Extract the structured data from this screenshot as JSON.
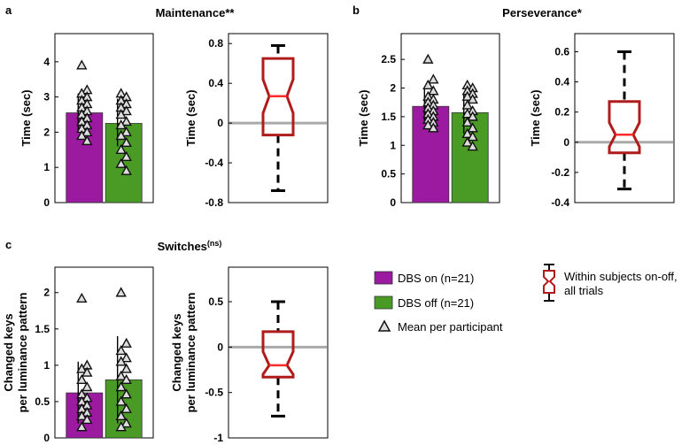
{
  "chart_data": [
    {
      "panel": "a",
      "title": "Maintenance",
      "title_suffix": "**",
      "bar_chart": {
        "type": "bar",
        "ylabel": "Time (sec)",
        "ylim": [
          0,
          4.8
        ],
        "yticks": [
          0,
          1,
          2,
          3,
          4
        ],
        "ytick_labels": [
          "0",
          "1",
          "2",
          "3",
          "4"
        ],
        "series": [
          {
            "name": "DBS on (n=21)",
            "color": "#9b1aa0",
            "value": 2.55,
            "err_low": 2.0,
            "err_high": 3.1,
            "points": [
              3.9,
              3.2,
              3.1,
              3.0,
              2.9,
              2.8,
              2.7,
              2.6,
              2.5,
              2.4,
              2.3,
              2.2,
              2.1,
              2.0,
              1.9,
              1.75
            ]
          },
          {
            "name": "DBS off (n=21)",
            "color": "#4a9a26",
            "value": 2.25,
            "err_low": 1.6,
            "err_high": 2.95,
            "points": [
              3.1,
              3.0,
              2.9,
              2.8,
              2.7,
              2.6,
              2.5,
              2.3,
              2.2,
              2.0,
              1.9,
              1.7,
              1.5,
              1.3,
              1.1,
              0.9
            ]
          }
        ]
      },
      "box_chart": {
        "type": "box",
        "ylabel": "Time (sec)",
        "ylim": [
          -0.8,
          0.9
        ],
        "yticks": [
          -0.8,
          -0.4,
          0,
          0.4,
          0.8
        ],
        "ytick_labels": [
          "-0.8",
          "-0.4",
          "0",
          "0.4",
          "0.8"
        ],
        "whisker_low": -0.68,
        "q1": -0.12,
        "median": 0.27,
        "q3": 0.65,
        "whisker_high": 0.78,
        "notch_low": 0.1,
        "notch_high": 0.44
      }
    },
    {
      "panel": "b",
      "title": "Perseverance",
      "title_suffix": "*",
      "bar_chart": {
        "type": "bar",
        "ylabel": "Time (sec)",
        "ylim": [
          0,
          2.95
        ],
        "yticks": [
          0,
          0.5,
          1,
          1.5,
          2,
          2.5
        ],
        "ytick_labels": [
          "0",
          "0.5",
          "1",
          "1.5",
          "2",
          "2.5"
        ],
        "series": [
          {
            "name": "DBS on (n=21)",
            "color": "#9b1aa0",
            "value": 1.68,
            "err_low": 1.4,
            "err_high": 2.0,
            "points": [
              2.5,
              2.15,
              2.05,
              1.95,
              1.85,
              1.8,
              1.75,
              1.7,
              1.65,
              1.6,
              1.55,
              1.5,
              1.45,
              1.4,
              1.35,
              1.3
            ]
          },
          {
            "name": "DBS off (n=21)",
            "color": "#4a9a26",
            "value": 1.57,
            "err_low": 1.2,
            "err_high": 1.9,
            "points": [
              2.05,
              2.0,
              1.95,
              1.9,
              1.85,
              1.8,
              1.7,
              1.6,
              1.55,
              1.5,
              1.4,
              1.3,
              1.2,
              1.15,
              1.05,
              0.98
            ]
          }
        ]
      },
      "box_chart": {
        "type": "box",
        "ylabel": "Time (sec)",
        "ylim": [
          -0.4,
          0.72
        ],
        "yticks": [
          -0.4,
          -0.2,
          0,
          0.2,
          0.4,
          0.6
        ],
        "ytick_labels": [
          "-0.4",
          "-0.2",
          "0",
          "0.2",
          "0.4",
          "0.6"
        ],
        "whisker_low": -0.31,
        "q1": -0.07,
        "median": 0.05,
        "q3": 0.27,
        "whisker_high": 0.6,
        "notch_low": -0.03,
        "notch_high": 0.13
      }
    },
    {
      "panel": "c",
      "title": "Switches",
      "title_suffix": "(ns)",
      "bar_chart": {
        "type": "bar",
        "ylabel": "Changed keys per luminance pattern",
        "ylabel_lines": [
          "Changed keys",
          "per luminance pattern"
        ],
        "ylim": [
          0,
          2.35
        ],
        "yticks": [
          0,
          0.5,
          1,
          1.5,
          2
        ],
        "ytick_labels": [
          "0",
          "0.5",
          "1",
          "1.5",
          "2"
        ],
        "series": [
          {
            "name": "DBS on (n=21)",
            "color": "#9b1aa0",
            "value": 0.62,
            "err_low": 0.2,
            "err_high": 1.05,
            "points": [
              1.92,
              1.0,
              0.95,
              0.9,
              0.8,
              0.7,
              0.6,
              0.55,
              0.5,
              0.45,
              0.4,
              0.35,
              0.3,
              0.25,
              0.15
            ]
          },
          {
            "name": "DBS off (n=21)",
            "color": "#4a9a26",
            "value": 0.8,
            "err_low": 0.2,
            "err_high": 1.4,
            "points": [
              2.0,
              1.3,
              1.2,
              1.1,
              1.05,
              0.95,
              0.85,
              0.8,
              0.7,
              0.6,
              0.5,
              0.4,
              0.3,
              0.2,
              0.15
            ]
          }
        ]
      },
      "box_chart": {
        "type": "box",
        "ylabel": "Changed keys per luminance pattern",
        "ylabel_lines": [
          "Changed keys",
          "per luminance pattern"
        ],
        "ylim": [
          -1.0,
          0.88
        ],
        "yticks": [
          -1,
          -0.5,
          0,
          0.5
        ],
        "ytick_labels": [
          "-1",
          "-0.5",
          "0",
          "0.5"
        ],
        "whisker_low": -0.76,
        "q1": -0.33,
        "median": -0.2,
        "q3": 0.17,
        "whisker_high": 0.5,
        "notch_low": -0.3,
        "notch_high": -0.05
      }
    }
  ],
  "legend": {
    "dbs_on": "DBS on (n=21)",
    "dbs_off": "DBS off (n=21)",
    "mean": "Mean per participant",
    "box_line1": "Within subjects on-off,",
    "box_line2": "all trials",
    "colors": {
      "on": "#9b1aa0",
      "off": "#4a9a26",
      "box": "#b01c1c",
      "box_median": "#ff2a2a",
      "zero": "#aaaaaa"
    }
  }
}
